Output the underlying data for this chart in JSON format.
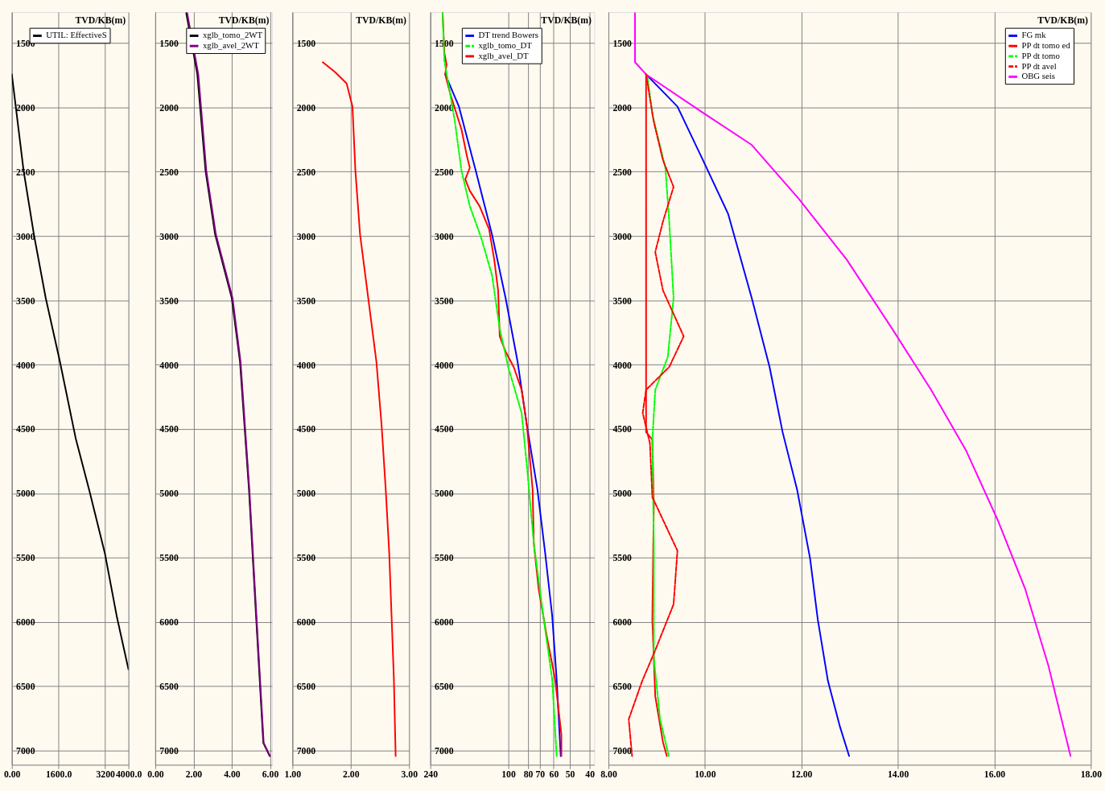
{
  "chart_data": [
    {
      "type": "line",
      "ylabel": "TVD/KB(m)",
      "ylim": [
        7110,
        1260
      ],
      "yticks": [
        1500,
        2000,
        2500,
        3000,
        3500,
        4000,
        4500,
        5000,
        5500,
        6000,
        6500,
        7000
      ],
      "xlim": [
        0,
        4000
      ],
      "xticks": [
        {
          "value": 0,
          "label": "0.00"
        },
        {
          "value": 1600,
          "label": "1600.0"
        },
        {
          "value": 3200,
          "label": "3200"
        },
        {
          "value": 4000,
          "label": "4000.0"
        }
      ],
      "grid": true,
      "legend": "top right",
      "series": [
        {
          "name": "UTIL: EffectiveS",
          "color": "#000000",
          "line_style": "solid",
          "x": [
            0,
            405,
            757,
            1162,
            1649,
            2189,
            2649,
            3189,
            3595,
            4000
          ],
          "values": [
            1744,
            2494,
            2988,
            3482,
            3976,
            4571,
            4970,
            5464,
            5952,
            6369
          ]
        }
      ]
    },
    {
      "type": "line",
      "ylabel": "TVD/KB(m)",
      "ylim": [
        7110,
        1260
      ],
      "yticks": [
        1500,
        2000,
        2500,
        3000,
        3500,
        4000,
        4500,
        5000,
        5500,
        6000,
        6500,
        7000
      ],
      "xlim": [
        0,
        6.1
      ],
      "xticks": [
        {
          "value": 0,
          "label": "0.00"
        },
        {
          "value": 2,
          "label": "2.00"
        },
        {
          "value": 4,
          "label": "4.00"
        },
        {
          "value": 6,
          "label": "6.00"
        }
      ],
      "grid": true,
      "legend": "top right",
      "series": [
        {
          "name": "xglb_tomo_2WT",
          "color": "#000000",
          "line_style": "solid",
          "x": [
            1.62,
            2.2,
            2.63,
            3.13,
            4.0,
            4.43,
            4.9,
            5.27,
            5.65,
            5.98
          ],
          "values": [
            1268,
            1744,
            2494,
            2988,
            3482,
            3976,
            4970,
            5952,
            6940,
            7042
          ]
        },
        {
          "name": "xglb_avel_2WT",
          "color": "#800080",
          "line_style": "solid",
          "x": [
            1.67,
            2.25,
            2.67,
            3.17,
            4.04,
            4.46,
            4.92,
            5.29,
            5.67,
            6.0
          ],
          "values": [
            1268,
            1744,
            2494,
            2988,
            3482,
            3976,
            4970,
            5952,
            6940,
            7042
          ]
        }
      ]
    },
    {
      "type": "line",
      "ylabel": "TVD/KB(m)",
      "ylim": [
        7110,
        1260
      ],
      "yticks": [
        1500,
        2000,
        2500,
        3000,
        3500,
        4000,
        4500,
        5000,
        5500,
        6000,
        6500,
        7000
      ],
      "xlim": [
        1,
        3
      ],
      "xticks": [
        {
          "value": 1,
          "label": "1.00"
        },
        {
          "value": 2,
          "label": "2.00"
        },
        {
          "value": 3,
          "label": "3.00"
        }
      ],
      "grid": true,
      "series": [
        {
          "color": "#ff0000",
          "line_style": "solid",
          "x": [
            1.52,
            1.73,
            1.93,
            2.03,
            2.08,
            2.16,
            2.3,
            2.44,
            2.53,
            2.6,
            2.66,
            2.7,
            2.74,
            2.77
          ],
          "values": [
            1649,
            1726,
            1815,
            1994,
            2494,
            2988,
            3482,
            3976,
            4476,
            4970,
            5464,
            5952,
            6446,
            7042
          ]
        }
      ]
    },
    {
      "type": "line",
      "ylabel": "TVD/KB(m)",
      "ylim": [
        7110,
        1260
      ],
      "yticks": [
        1500,
        2000,
        2500,
        3000,
        3500,
        4000,
        4500,
        5000,
        5500,
        6000,
        6500,
        7000
      ],
      "xlim": [
        240,
        38
      ],
      "log": "x",
      "xticks": [
        240,
        100,
        80,
        70,
        60,
        50,
        40
      ],
      "grid": true,
      "legend": "top left",
      "series": [
        {
          "name": "DT trend Bowers",
          "color": "#0000ff",
          "line_style": "solid",
          "x": [
            203,
            174,
            144,
            120,
            103,
            90,
            81,
            72,
            66,
            61,
            58,
            55.4
          ],
          "values": [
            1744,
            1994,
            2494,
            2988,
            3482,
            3976,
            4476,
            4970,
            5464,
            5952,
            6446,
            7042
          ]
        },
        {
          "name": "xglb_tomo_DT",
          "color": "#00ff00",
          "line_style": "dashed",
          "x": [
            209,
            205,
            196,
            182,
            169,
            154,
            136,
            120,
            110,
            100,
            86,
            81,
            75,
            67,
            61,
            58
          ],
          "values": [
            1268,
            1637,
            1815,
            2113,
            2494,
            2768,
            3006,
            3304,
            3720,
            4018,
            4375,
            4792,
            5387,
            5982,
            6446,
            7042
          ]
        },
        {
          "name": "xglb_avel_DT",
          "color": "#ff0000",
          "line_style": "solid",
          "x": [
            209,
            205,
            200,
            203,
            191,
            169,
            159,
            154,
            162,
            154,
            138,
            124,
            117,
            112,
            110,
            103,
            94,
            86,
            81,
            76,
            75,
            71,
            65,
            59,
            55,
            55
          ],
          "values": [
            1268,
            1577,
            1667,
            1744,
            1905,
            2173,
            2381,
            2470,
            2560,
            2649,
            2768,
            2946,
            3184,
            3423,
            3780,
            3899,
            4018,
            4196,
            4476,
            4970,
            5387,
            5744,
            6101,
            6446,
            6875,
            7042
          ]
        }
      ]
    },
    {
      "type": "line",
      "ylabel": "TVD/KB(m)",
      "ylim": [
        7110,
        1260
      ],
      "yticks": [
        1500,
        2000,
        2500,
        3000,
        3500,
        4000,
        4500,
        5000,
        5500,
        6000,
        6500,
        7000
      ],
      "xlim": [
        8,
        18
      ],
      "xticks": [
        {
          "value": 8,
          "label": "8.00"
        },
        {
          "value": 10,
          "label": "10.00"
        },
        {
          "value": 12,
          "label": "12.00"
        },
        {
          "value": 14,
          "label": "14.00"
        },
        {
          "value": 16,
          "label": "16.00"
        },
        {
          "value": 18,
          "label": "18.00"
        }
      ],
      "grid": true,
      "legend": "top right",
      "series": [
        {
          "name": "FG mk",
          "color": "#0000ff",
          "line_style": "solid",
          "x": [
            8.78,
            9.43,
            9.96,
            10.48,
            10.97,
            11.34,
            11.61,
            11.91,
            12.18,
            12.34,
            12.55,
            12.8,
            12.99
          ],
          "values": [
            1744,
            1994,
            2411,
            2827,
            3482,
            4018,
            4524,
            4970,
            5506,
            5982,
            6458,
            6815,
            7042
          ]
        },
        {
          "name": "PP dt tomo ed",
          "color": "#ff0000",
          "line_style": "solid",
          "x": [
            8.78,
            8.78,
            8.91,
            8.94,
            8.91,
            8.97,
            9.13,
            9.21
          ],
          "values": [
            1744,
            4524,
            4583,
            5089,
            5982,
            6577,
            6934,
            7042
          ]
        },
        {
          "name": "PP dt tomo",
          "color": "#00ff00",
          "line_style": "dashed",
          "x": [
            8.81,
            8.91,
            9.18,
            9.26,
            9.35,
            9.23,
            8.97,
            8.91,
            8.94,
            8.94,
            9.07,
            9.25
          ],
          "values": [
            1770,
            2054,
            2470,
            2887,
            3482,
            3940,
            4196,
            4583,
            5387,
            6280,
            6756,
            7042
          ]
        },
        {
          "name": "PP dt avel",
          "color": "#ff0000",
          "line_style": "dashed",
          "x": [
            8.78,
            8.94,
            9.13,
            9.35,
            9.13,
            8.97,
            9.13,
            9.56,
            9.26,
            8.78,
            8.71,
            8.86,
            8.91,
            9.43,
            9.35,
            8.97,
            8.7,
            8.42,
            8.49
          ],
          "values": [
            1744,
            2113,
            2411,
            2619,
            2887,
            3125,
            3423,
            3780,
            4018,
            4196,
            4375,
            4613,
            5030,
            5446,
            5863,
            6220,
            6458,
            6756,
            7042
          ]
        },
        {
          "name": "OBG seis",
          "color": "#ff00ff",
          "line_style": "solid",
          "x": [
            8.55,
            8.55,
            8.78,
            9.96,
            10.97,
            11.94,
            12.94,
            13.88,
            14.69,
            15.42,
            16.07,
            16.64,
            17.12,
            17.58
          ],
          "values": [
            1268,
            1649,
            1744,
            2042,
            2292,
            2708,
            3184,
            3720,
            4196,
            4672,
            5208,
            5744,
            6339,
            7042
          ]
        }
      ]
    }
  ]
}
